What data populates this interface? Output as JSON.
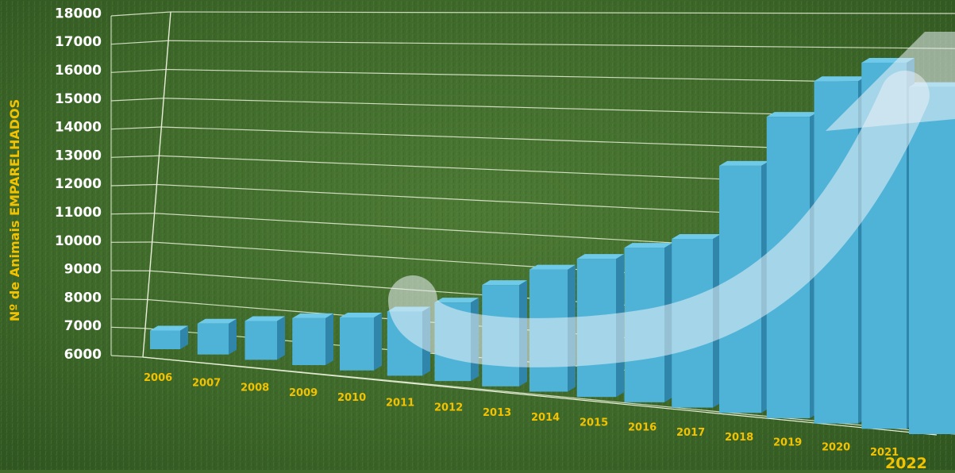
{
  "chart_data": {
    "type": "bar",
    "title": "",
    "xlabel": "",
    "ylabel": "Nº de Animais  EMPARELHADOS",
    "categories": [
      "2006",
      "2007",
      "2008",
      "2009",
      "2010",
      "2011",
      "2012",
      "2013",
      "2014",
      "2015",
      "2016",
      "2017",
      "2018",
      "2019",
      "2020",
      "2021",
      "2022"
    ],
    "series": [
      {
        "values": [
          6800,
          7300,
          7600,
          7900,
          8100,
          8500,
          9000,
          9800,
          10500,
          11000,
          11500,
          11900,
          14500,
          16200,
          17400,
          18000,
          17200
        ]
      }
    ],
    "yticks": [
      6000,
      7000,
      8000,
      9000,
      10000,
      11000,
      12000,
      13000,
      14000,
      15000,
      16000,
      17000,
      18000
    ],
    "ylim": [
      6000,
      18000
    ],
    "grid": true,
    "trend_arrow": true,
    "colors": {
      "bar_front": "#4fb3d8",
      "bar_side": "#2f86aa",
      "bar_top": "#6fcaea",
      "label": "#f2c200",
      "axis_text": "#ffffff",
      "background": "#3f6a2c"
    }
  }
}
